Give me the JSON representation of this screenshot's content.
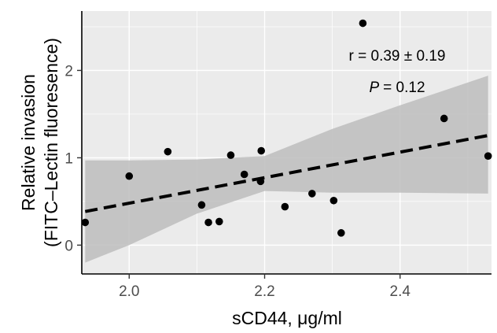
{
  "chart_data": {
    "type": "scatter",
    "title": "",
    "xlabel": "sCD44, μg/ml",
    "ylabel_lines": [
      "Relative invasion",
      "(FITC–Lectin fluoresence)"
    ],
    "xlim": [
      1.93,
      2.535
    ],
    "ylim": [
      -0.33,
      2.68
    ],
    "x_ticks": [
      2.0,
      2.2,
      2.4
    ],
    "x_tick_labels": [
      "2.0",
      "2.2",
      "2.4"
    ],
    "y_ticks": [
      0,
      1,
      2
    ],
    "y_tick_labels": [
      "0",
      "1",
      "2"
    ],
    "grid": true,
    "legend": "none",
    "points": [
      {
        "x": 1.935,
        "y": 0.26
      },
      {
        "x": 2.0,
        "y": 0.79
      },
      {
        "x": 2.057,
        "y": 1.07
      },
      {
        "x": 2.107,
        "y": 0.46
      },
      {
        "x": 2.117,
        "y": 0.26
      },
      {
        "x": 2.133,
        "y": 0.27
      },
      {
        "x": 2.15,
        "y": 1.03
      },
      {
        "x": 2.17,
        "y": 0.81
      },
      {
        "x": 2.195,
        "y": 1.08
      },
      {
        "x": 2.194,
        "y": 0.73
      },
      {
        "x": 2.23,
        "y": 0.44
      },
      {
        "x": 2.27,
        "y": 0.59
      },
      {
        "x": 2.302,
        "y": 0.51
      },
      {
        "x": 2.313,
        "y": 0.14
      },
      {
        "x": 2.345,
        "y": 2.54
      },
      {
        "x": 2.465,
        "y": 1.45
      },
      {
        "x": 2.53,
        "y": 1.02
      }
    ],
    "fit": {
      "x0": 1.935,
      "y0": 0.385,
      "x1": 2.53,
      "y1": 1.255
    },
    "ci_band": {
      "x": [
        1.935,
        2.0,
        2.1,
        2.2,
        2.3,
        2.4,
        2.53
      ],
      "upper": [
        0.97,
        0.97,
        0.98,
        1.02,
        1.33,
        1.6,
        1.94
      ],
      "lower": [
        -0.2,
        0.0,
        0.36,
        0.62,
        0.6,
        0.6,
        0.59
      ]
    },
    "annotations": {
      "r_label": "r = 0.39 ± 0.19",
      "p_symbol": "P",
      "p_value": "= 0.12"
    },
    "colors": {
      "panel": "#ebebeb",
      "grid": "#ffffff",
      "points": "#000000",
      "fit_line": "#000000",
      "band": "#bdbdbd"
    }
  }
}
